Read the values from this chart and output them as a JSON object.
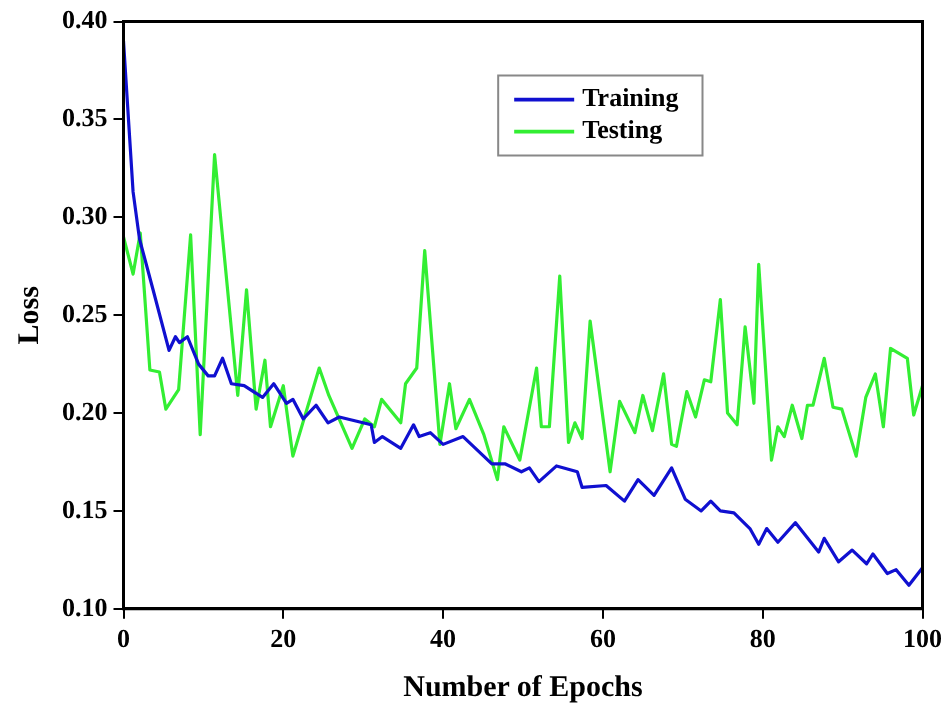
{
  "chart_data": {
    "type": "line",
    "xlabel": "Number of Epochs",
    "ylabel": "Loss",
    "xlim": [
      0,
      100
    ],
    "xticks": [
      0,
      20,
      40,
      60,
      80,
      100
    ],
    "ylim": [
      0.1,
      0.4
    ],
    "yticks": [
      {
        "value": 0.1,
        "label": "0.10"
      },
      {
        "value": 0.15,
        "label": "0.15"
      },
      {
        "value": 0.2,
        "label": "0.20"
      },
      {
        "value": 0.25,
        "label": "0.25"
      },
      {
        "value": 0.3,
        "label": "0.30"
      },
      {
        "value": 0.35,
        "label": "0.35"
      },
      {
        "value": 0.4,
        "label": "0.40"
      }
    ],
    "grid": false,
    "legend": "top right",
    "marker": "none",
    "line_style": "solid",
    "series": [
      {
        "name": "Training",
        "color": "#1010d0",
        "x": [
          0,
          1.2,
          2,
          3.7,
          5.7,
          6.5,
          7,
          8,
          9.4,
          10.6,
          11.4,
          12.4,
          13.5,
          15.1,
          17.4,
          18.8,
          20.4,
          21.2,
          22.5,
          24.1,
          25.6,
          27,
          31,
          31.4,
          32.4,
          34.7,
          36.3,
          37,
          38.4,
          40,
          42.5,
          46.1,
          47.8,
          49.8,
          50.8,
          52,
          54.2,
          56.8,
          57.4,
          60.4,
          62.7,
          64.4,
          66.4,
          68.6,
          70.3,
          72.3,
          73.5,
          74.7,
          76.4,
          78.4,
          79.5,
          80.5,
          81.9,
          84.1,
          87,
          87.7,
          89.5,
          91.2,
          93,
          93.8,
          95.6,
          96.7,
          98.3,
          100
        ],
        "values": [
          0.39,
          0.313,
          0.289,
          0.263,
          0.232,
          0.239,
          0.236,
          0.239,
          0.225,
          0.219,
          0.219,
          0.228,
          0.215,
          0.214,
          0.208,
          0.215,
          0.205,
          0.207,
          0.197,
          0.204,
          0.195,
          0.198,
          0.194,
          0.185,
          0.188,
          0.182,
          0.194,
          0.188,
          0.19,
          0.184,
          0.188,
          0.174,
          0.174,
          0.17,
          0.172,
          0.165,
          0.173,
          0.17,
          0.162,
          0.163,
          0.155,
          0.166,
          0.158,
          0.172,
          0.156,
          0.15,
          0.155,
          0.15,
          0.149,
          0.141,
          0.133,
          0.141,
          0.134,
          0.144,
          0.129,
          0.136,
          0.124,
          0.13,
          0.123,
          0.128,
          0.118,
          0.12,
          0.112,
          0.121
        ]
      },
      {
        "name": "Testing",
        "color": "#33ee33",
        "x": [
          0,
          1.2,
          2.1,
          3.3,
          4.5,
          5.3,
          6.9,
          8.4,
          9.6,
          11.4,
          14.3,
          15.4,
          16.6,
          17.7,
          18.4,
          20,
          21.2,
          24.5,
          25.7,
          28.6,
          30.2,
          31.4,
          32.3,
          34.7,
          35.3,
          36.7,
          37.7,
          39.6,
          40.8,
          41.6,
          43.3,
          45.1,
          46.8,
          47.6,
          49.6,
          51.7,
          52.3,
          53.3,
          54.6,
          55.7,
          56.5,
          57.4,
          58.4,
          60.9,
          62.1,
          64,
          65,
          66.2,
          67.6,
          68.6,
          69.2,
          70.5,
          71.6,
          72.7,
          73.5,
          74.7,
          75.6,
          76.8,
          77.8,
          78.9,
          79.5,
          81.1,
          81.9,
          82.7,
          83.7,
          84.9,
          85.6,
          86.3,
          87.7,
          88.8,
          89.9,
          91.7,
          92.9,
          94.1,
          95.1,
          96,
          98.1,
          98.9,
          100
        ],
        "values": [
          0.29,
          0.271,
          0.292,
          0.222,
          0.221,
          0.202,
          0.212,
          0.291,
          0.189,
          0.332,
          0.209,
          0.263,
          0.202,
          0.227,
          0.193,
          0.214,
          0.178,
          0.223,
          0.209,
          0.182,
          0.197,
          0.193,
          0.207,
          0.195,
          0.215,
          0.223,
          0.283,
          0.184,
          0.215,
          0.192,
          0.207,
          0.189,
          0.166,
          0.193,
          0.176,
          0.223,
          0.193,
          0.193,
          0.27,
          0.185,
          0.195,
          0.187,
          0.247,
          0.17,
          0.206,
          0.19,
          0.209,
          0.191,
          0.22,
          0.184,
          0.183,
          0.211,
          0.198,
          0.217,
          0.216,
          0.258,
          0.2,
          0.194,
          0.244,
          0.205,
          0.276,
          0.176,
          0.193,
          0.188,
          0.204,
          0.187,
          0.204,
          0.204,
          0.228,
          0.203,
          0.202,
          0.178,
          0.208,
          0.22,
          0.193,
          0.233,
          0.228,
          0.199,
          0.214
        ]
      }
    ]
  }
}
